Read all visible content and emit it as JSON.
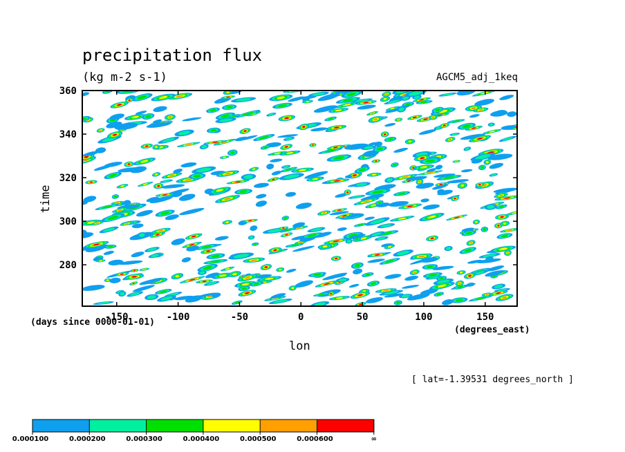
{
  "chart_data": {
    "type": "heatmap",
    "title": "precipitation flux",
    "units": "(kg m-2 s-1)",
    "run_label": "AGCM5_adj_1keq",
    "xlabel": "lon",
    "xunits": "(degrees_east)",
    "ylabel": "time",
    "yunits": "(days since 0000-01-01)",
    "annotation": "[ lat=-1.39531 degrees_north ]",
    "xlim": [
      -178,
      176
    ],
    "ylim": [
      261,
      360
    ],
    "x_ticks": [
      -150,
      -100,
      -50,
      0,
      50,
      100,
      150
    ],
    "x_tick_labels": [
      "-150",
      "-100",
      "-50",
      "0",
      "50",
      "100",
      "150"
    ],
    "y_ticks": [
      280,
      300,
      320,
      340,
      360
    ],
    "y_tick_labels": [
      "280",
      "300",
      "320",
      "340",
      "360"
    ],
    "grid": false,
    "colorbar": {
      "levels": [
        "0.000100",
        "0.000200",
        "0.000300",
        "0.000400",
        "0.000500",
        "0.000600",
        "∞"
      ],
      "colors": [
        "#0f9fef",
        "#00f0a0",
        "#00e000",
        "#ffff00",
        "#ffa000",
        "#ff0000"
      ]
    }
  }
}
